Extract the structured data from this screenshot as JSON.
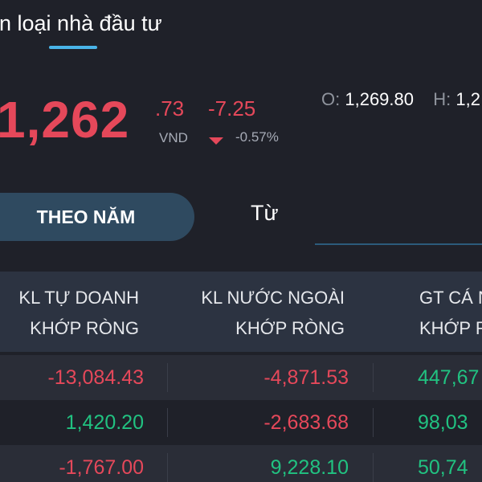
{
  "header": {
    "title": "n loại nhà đầu tư"
  },
  "quote": {
    "price_main": "1,262",
    "price_decimal": ".73",
    "currency": "VND",
    "change": "-7.25",
    "change_pct": "-0.57%",
    "direction_icon": "caret-down-icon",
    "open_label": "O:",
    "open_value": "1,269.80",
    "high_label": "H:",
    "high_value": "1,2"
  },
  "tabs": {
    "by_year": "THEO NĂM",
    "from": "Từ"
  },
  "table": {
    "headers": [
      {
        "line1": "KL TỰ DOANH",
        "line2": "KHỚP RÒNG"
      },
      {
        "line1": "KL NƯỚC NGOÀI",
        "line2": "KHỚP RÒNG"
      },
      {
        "line1": "GT CÁ N",
        "line2": "KHỚP R"
      }
    ],
    "rows": [
      {
        "c1": "-13,084.43",
        "c2": "-4,871.53",
        "c3": "447,67"
      },
      {
        "c1": "1,420.20",
        "c2": "-2,683.68",
        "c3": "98,03"
      },
      {
        "c1": "-1,767.00",
        "c2": "9,228.10",
        "c3": "50,74"
      }
    ]
  },
  "colors": {
    "background": "#1f2129",
    "negative": "#e5485a",
    "positive": "#21c281",
    "accent": "#49b4e8",
    "active_tab": "#2f4a60",
    "table_header": "#2c3341"
  }
}
